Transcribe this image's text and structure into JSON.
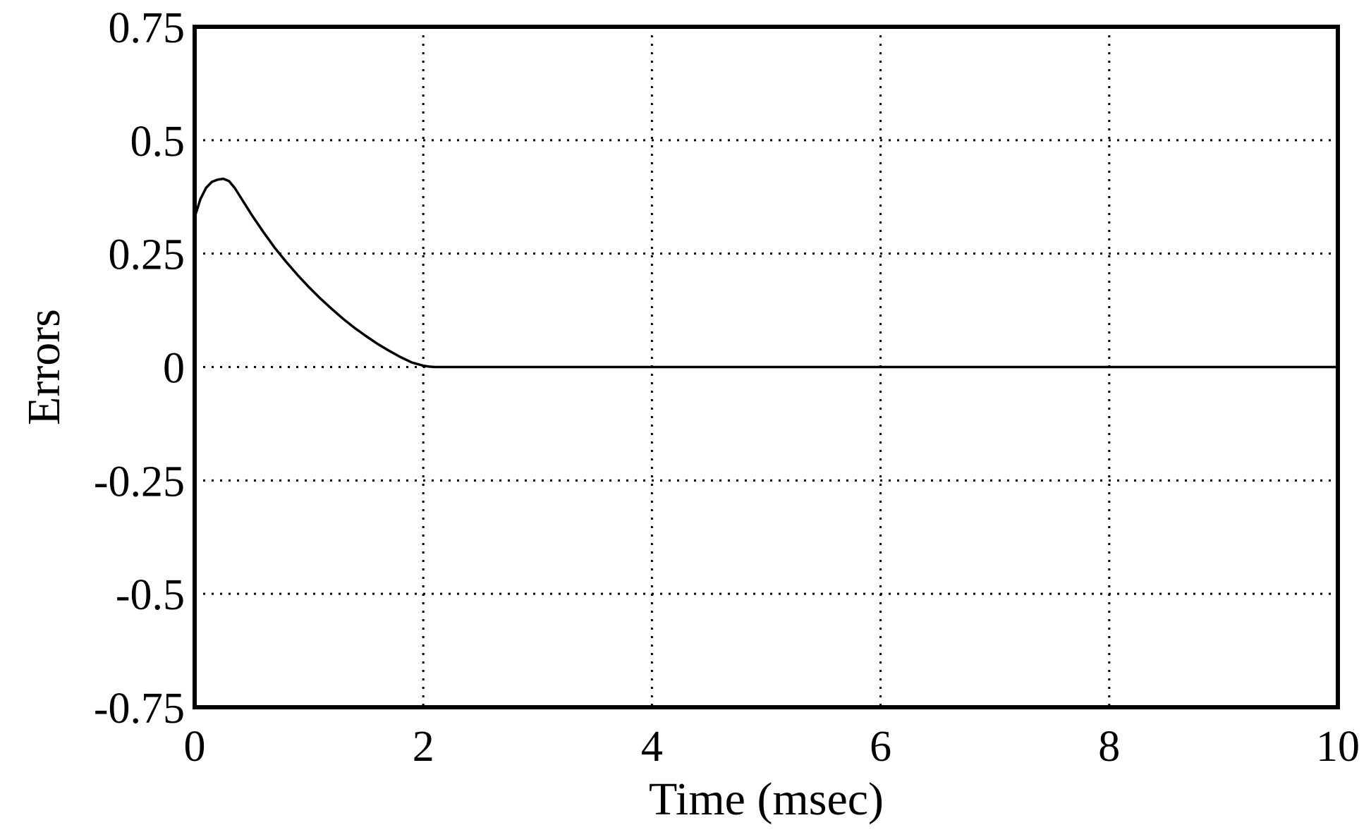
{
  "chart_data": {
    "type": "line",
    "title": "",
    "xlabel": "Time (msec)",
    "ylabel": "Errors",
    "xlim": [
      0,
      10
    ],
    "ylim": [
      -0.75,
      0.75
    ],
    "x_ticks": [
      0,
      2,
      4,
      6,
      8,
      10
    ],
    "x_tick_labels": [
      "0",
      "2",
      "4",
      "6",
      "8",
      "10"
    ],
    "y_ticks": [
      0.75,
      0.5,
      0.25,
      0,
      -0.25,
      -0.5,
      -0.75
    ],
    "y_tick_labels": [
      "0.75",
      "0.5",
      "0.25",
      "0",
      "-0.25",
      "-0.5",
      "-0.75"
    ],
    "grid": true,
    "line_color": "#000000",
    "series": [
      {
        "x": [
          0,
          0.05,
          0.1,
          0.15,
          0.2,
          0.25,
          0.3,
          0.35,
          0.4,
          0.5,
          0.6,
          0.7,
          0.8,
          0.9,
          1.0,
          1.1,
          1.2,
          1.3,
          1.4,
          1.5,
          1.6,
          1.7,
          1.8,
          1.9,
          2.0,
          2.05,
          2.1,
          3,
          4,
          5,
          6,
          7,
          8,
          9,
          10
        ],
        "y": [
          0.33,
          0.37,
          0.395,
          0.408,
          0.413,
          0.415,
          0.41,
          0.395,
          0.375,
          0.335,
          0.298,
          0.263,
          0.232,
          0.203,
          0.176,
          0.151,
          0.128,
          0.106,
          0.086,
          0.068,
          0.051,
          0.036,
          0.022,
          0.01,
          0.003,
          0.001,
          0,
          0,
          0,
          0,
          0,
          0,
          0,
          0,
          0
        ]
      }
    ]
  }
}
